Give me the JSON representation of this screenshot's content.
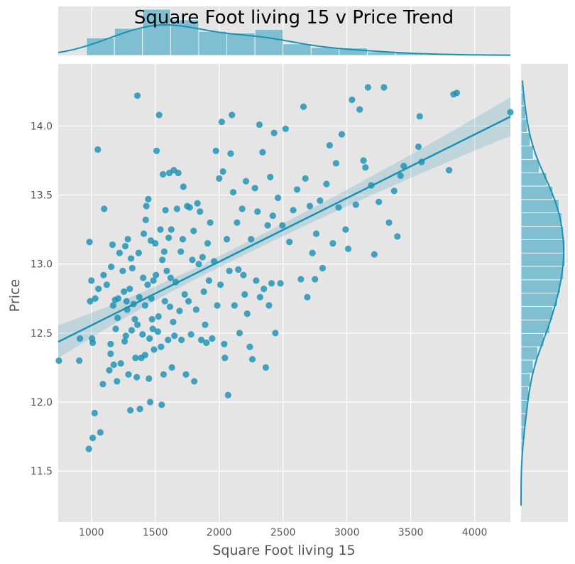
{
  "chart_data": {
    "type": "scatter",
    "title": "Square Foot living 15 v Price Trend",
    "xlabel": "Square Foot living 15",
    "ylabel": "Price",
    "xlim": [
      740,
      4280
    ],
    "ylim": [
      11.13,
      14.45
    ],
    "xticks": [
      1000,
      1500,
      2000,
      2500,
      3000,
      3500,
      4000
    ],
    "yticks": [
      11.5,
      12.0,
      12.5,
      13.0,
      13.5,
      14.0
    ],
    "grid": true,
    "color": "#1a91b3",
    "hist_color": "#7fbfd1",
    "background": "#e5e5e5",
    "regression": {
      "slope": 0.000461,
      "intercept": 12.095,
      "ci_halfwidth": [
        0.12,
        0.04,
        0.14
      ]
    },
    "x_hist": {
      "bins": [
        960,
        1180,
        1400,
        1620,
        1840,
        2060,
        2280,
        2500,
        2720,
        2940,
        3160,
        3380,
        3600,
        3820,
        4040,
        4260
      ],
      "counts": [
        35,
        54,
        92,
        71,
        48,
        45,
        52,
        23,
        16,
        15,
        7,
        5,
        2,
        1,
        1
      ]
    },
    "y_hist": {
      "bins": [
        11.625,
        11.722,
        11.819,
        11.916,
        12.013,
        12.11,
        12.207,
        12.304,
        12.401,
        12.498,
        12.595,
        12.692,
        12.789,
        12.886,
        12.983,
        13.08,
        13.177,
        13.274,
        13.371,
        13.468,
        13.565,
        13.662,
        13.759,
        13.856,
        13.953,
        14.05,
        14.147,
        14.244,
        14.3
      ],
      "counts": [
        1,
        2,
        3,
        4,
        5,
        6,
        8,
        11,
        15,
        19,
        21,
        24,
        26,
        28,
        29,
        29,
        28,
        27,
        25,
        21,
        17,
        12,
        8,
        6,
        4,
        3,
        2,
        1
      ]
    },
    "points": [
      [
        745,
        12.3
      ],
      [
        910,
        12.46
      ],
      [
        905,
        12.3
      ],
      [
        980,
        11.66
      ],
      [
        985,
        13.16
      ],
      [
        990,
        12.73
      ],
      [
        1000,
        12.88
      ],
      [
        1005,
        12.46
      ],
      [
        1010,
        12.43
      ],
      [
        1010,
        11.74
      ],
      [
        1025,
        11.92
      ],
      [
        1030,
        12.75
      ],
      [
        1050,
        13.83
      ],
      [
        1055,
        12.82
      ],
      [
        1070,
        11.78
      ],
      [
        1090,
        12.13
      ],
      [
        1095,
        12.92
      ],
      [
        1100,
        13.4
      ],
      [
        1120,
        12.85
      ],
      [
        1140,
        12.23
      ],
      [
        1150,
        12.42
      ],
      [
        1150,
        12.35
      ],
      [
        1155,
        12.98
      ],
      [
        1165,
        13.14
      ],
      [
        1170,
        12.7
      ],
      [
        1175,
        12.27
      ],
      [
        1185,
        12.74
      ],
      [
        1190,
        12.53
      ],
      [
        1200,
        12.15
      ],
      [
        1205,
        12.61
      ],
      [
        1210,
        12.75
      ],
      [
        1220,
        13.08
      ],
      [
        1230,
        12.28
      ],
      [
        1245,
        12.95
      ],
      [
        1255,
        12.8
      ],
      [
        1260,
        12.44
      ],
      [
        1265,
        13.13
      ],
      [
        1270,
        12.48
      ],
      [
        1275,
        12.73
      ],
      [
        1280,
        12.67
      ],
      [
        1285,
        13.18
      ],
      [
        1290,
        12.2
      ],
      [
        1300,
        12.82
      ],
      [
        1305,
        11.94
      ],
      [
        1310,
        13.04
      ],
      [
        1315,
        12.52
      ],
      [
        1320,
        12.97
      ],
      [
        1330,
        12.71
      ],
      [
        1340,
        12.6
      ],
      [
        1345,
        12.32
      ],
      [
        1355,
        12.18
      ],
      [
        1360,
        14.22
      ],
      [
        1360,
        12.56
      ],
      [
        1370,
        13.08
      ],
      [
        1375,
        12.76
      ],
      [
        1380,
        11.95
      ],
      [
        1390,
        12.32
      ],
      [
        1400,
        12.49
      ],
      [
        1405,
        12.9
      ],
      [
        1410,
        13.22
      ],
      [
        1420,
        12.7
      ],
      [
        1420,
        12.34
      ],
      [
        1425,
        13.32
      ],
      [
        1430,
        13.42
      ],
      [
        1440,
        12.85
      ],
      [
        1445,
        13.47
      ],
      [
        1450,
        12.17
      ],
      [
        1455,
        12.46
      ],
      [
        1460,
        12.0
      ],
      [
        1465,
        13.17
      ],
      [
        1470,
        12.75
      ],
      [
        1475,
        12.6
      ],
      [
        1480,
        12.53
      ],
      [
        1485,
        12.88
      ],
      [
        1490,
        12.38
      ],
      [
        1500,
        13.15
      ],
      [
        1505,
        12.92
      ],
      [
        1510,
        13.82
      ],
      [
        1520,
        12.51
      ],
      [
        1525,
        12.62
      ],
      [
        1530,
        14.08
      ],
      [
        1540,
        13.25
      ],
      [
        1545,
        12.4
      ],
      [
        1550,
        11.98
      ],
      [
        1555,
        13.03
      ],
      [
        1560,
        13.65
      ],
      [
        1565,
        12.2
      ],
      [
        1570,
        13.09
      ],
      [
        1575,
        12.73
      ],
      [
        1580,
        13.39
      ],
      [
        1590,
        12.95
      ],
      [
        1600,
        12.45
      ],
      [
        1605,
        13.19
      ],
      [
        1610,
        13.66
      ],
      [
        1615,
        12.69
      ],
      [
        1620,
        12.9
      ],
      [
        1625,
        13.25
      ],
      [
        1630,
        12.25
      ],
      [
        1640,
        12.58
      ],
      [
        1645,
        13.68
      ],
      [
        1650,
        12.48
      ],
      [
        1660,
        12.87
      ],
      [
        1670,
        13.4
      ],
      [
        1680,
        13.66
      ],
      [
        1690,
        12.66
      ],
      [
        1700,
        13.09
      ],
      [
        1705,
        12.45
      ],
      [
        1715,
        13.18
      ],
      [
        1720,
        13.56
      ],
      [
        1730,
        12.78
      ],
      [
        1740,
        12.2
      ],
      [
        1750,
        13.42
      ],
      [
        1760,
        12.73
      ],
      [
        1770,
        13.41
      ],
      [
        1780,
        12.49
      ],
      [
        1790,
        13.03
      ],
      [
        1800,
        13.24
      ],
      [
        1805,
        12.15
      ],
      [
        1820,
        12.67
      ],
      [
        1830,
        13.44
      ],
      [
        1840,
        13.0
      ],
      [
        1850,
        13.38
      ],
      [
        1860,
        12.45
      ],
      [
        1870,
        13.05
      ],
      [
        1880,
        12.8
      ],
      [
        1890,
        12.56
      ],
      [
        1900,
        12.43
      ],
      [
        1910,
        13.15
      ],
      [
        1920,
        12.88
      ],
      [
        1930,
        13.3
      ],
      [
        1945,
        12.46
      ],
      [
        1960,
        13.02
      ],
      [
        1975,
        13.82
      ],
      [
        1985,
        12.7
      ],
      [
        2000,
        13.62
      ],
      [
        2010,
        12.85
      ],
      [
        2020,
        14.03
      ],
      [
        2030,
        13.67
      ],
      [
        2040,
        12.42
      ],
      [
        2045,
        12.32
      ],
      [
        2060,
        13.18
      ],
      [
        2070,
        12.05
      ],
      [
        2080,
        12.95
      ],
      [
        2090,
        13.8
      ],
      [
        2100,
        14.08
      ],
      [
        2110,
        13.52
      ],
      [
        2120,
        12.7
      ],
      [
        2140,
        13.3
      ],
      [
        2150,
        12.96
      ],
      [
        2160,
        12.5
      ],
      [
        2180,
        13.4
      ],
      [
        2190,
        12.92
      ],
      [
        2200,
        12.78
      ],
      [
        2210,
        13.6
      ],
      [
        2220,
        12.64
      ],
      [
        2240,
        12.4
      ],
      [
        2250,
        13.18
      ],
      [
        2260,
        12.31
      ],
      [
        2280,
        13.55
      ],
      [
        2290,
        12.88
      ],
      [
        2300,
        13.38
      ],
      [
        2315,
        14.01
      ],
      [
        2320,
        12.76
      ],
      [
        2340,
        13.81
      ],
      [
        2350,
        12.82
      ],
      [
        2365,
        12.25
      ],
      [
        2380,
        13.28
      ],
      [
        2390,
        12.7
      ],
      [
        2400,
        13.63
      ],
      [
        2410,
        12.86
      ],
      [
        2420,
        13.35
      ],
      [
        2430,
        13.95
      ],
      [
        2440,
        12.5
      ],
      [
        2460,
        13.48
      ],
      [
        2480,
        12.86
      ],
      [
        2495,
        13.28
      ],
      [
        2520,
        13.98
      ],
      [
        2550,
        13.16
      ],
      [
        2580,
        13.39
      ],
      [
        2610,
        13.54
      ],
      [
        2640,
        12.89
      ],
      [
        2660,
        14.14
      ],
      [
        2675,
        13.62
      ],
      [
        2690,
        12.76
      ],
      [
        2710,
        13.42
      ],
      [
        2730,
        13.08
      ],
      [
        2750,
        12.89
      ],
      [
        2760,
        13.22
      ],
      [
        2790,
        13.46
      ],
      [
        2810,
        12.97
      ],
      [
        2840,
        13.58
      ],
      [
        2865,
        13.86
      ],
      [
        2890,
        13.15
      ],
      [
        2915,
        13.73
      ],
      [
        2935,
        13.41
      ],
      [
        2960,
        13.94
      ],
      [
        2990,
        13.25
      ],
      [
        3010,
        13.11
      ],
      [
        3040,
        14.19
      ],
      [
        3070,
        13.43
      ],
      [
        3100,
        14.12
      ],
      [
        3130,
        13.75
      ],
      [
        3145,
        13.7
      ],
      [
        3165,
        14.28
      ],
      [
        3190,
        13.57
      ],
      [
        3215,
        13.07
      ],
      [
        3250,
        13.45
      ],
      [
        3290,
        14.28
      ],
      [
        3330,
        13.3
      ],
      [
        3370,
        13.53
      ],
      [
        3395,
        13.2
      ],
      [
        3420,
        13.64
      ],
      [
        3445,
        13.71
      ],
      [
        3560,
        13.85
      ],
      [
        3570,
        14.07
      ],
      [
        3585,
        13.74
      ],
      [
        3800,
        13.68
      ],
      [
        3835,
        14.23
      ],
      [
        3860,
        14.24
      ],
      [
        4280,
        14.1
      ]
    ]
  }
}
